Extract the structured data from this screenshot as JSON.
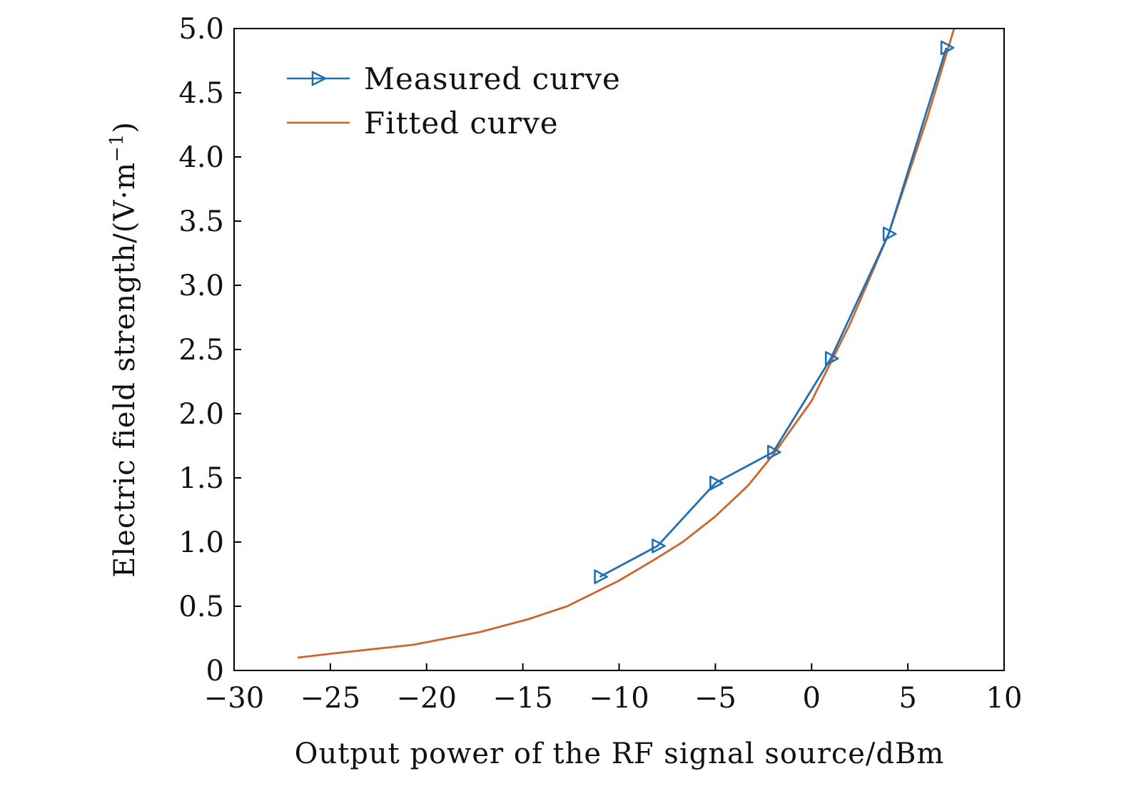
{
  "chart_data": {
    "type": "line",
    "title": "",
    "xlabel": "Output power of the RF signal source/dBm",
    "ylabel_main": "Electric field strength/(V·m",
    "ylabel_sup": "−1",
    "ylabel_close": ")",
    "xlim": [
      -30,
      10
    ],
    "ylim": [
      0,
      5.0
    ],
    "xticks": [
      -30,
      -25,
      -20,
      -15,
      -10,
      -5,
      0,
      5,
      10
    ],
    "xtick_labels": [
      "−30",
      "−25",
      "−20",
      "−15",
      "−10",
      "−5",
      "0",
      "5",
      "10"
    ],
    "yticks": [
      0,
      0.5,
      1.0,
      1.5,
      2.0,
      2.5,
      3.0,
      3.5,
      4.0,
      4.5,
      5.0
    ],
    "ytick_labels": [
      "0",
      "0.5",
      "1.0",
      "1.5",
      "2.0",
      "2.5",
      "3.0",
      "3.5",
      "4.0",
      "4.5",
      "5.0"
    ],
    "grid": false,
    "legend_position": "top-left",
    "series": [
      {
        "name": "Measured curve",
        "color": "#1f6fb4",
        "marker": "triangle-right",
        "x": [
          -11,
          -8,
          -5,
          -2,
          1,
          4,
          7
        ],
        "y": [
          0.73,
          0.97,
          1.46,
          1.7,
          2.43,
          3.4,
          4.85
        ]
      },
      {
        "name": "Fitted curve",
        "color": "#d0652a",
        "marker": "none",
        "x": [
          -26.7,
          -25,
          -20.7,
          -17.2,
          -14.7,
          -12.7,
          -10.0,
          -8.2,
          -6.7,
          -5.0,
          -3.3,
          -2.0,
          0.0,
          2.0,
          4.0,
          6.0,
          7.0,
          7.4
        ],
        "y": [
          0.1,
          0.13,
          0.2,
          0.3,
          0.4,
          0.5,
          0.7,
          0.86,
          1.0,
          1.2,
          1.44,
          1.68,
          2.1,
          2.7,
          3.4,
          4.3,
          4.8,
          5.0
        ]
      }
    ]
  }
}
